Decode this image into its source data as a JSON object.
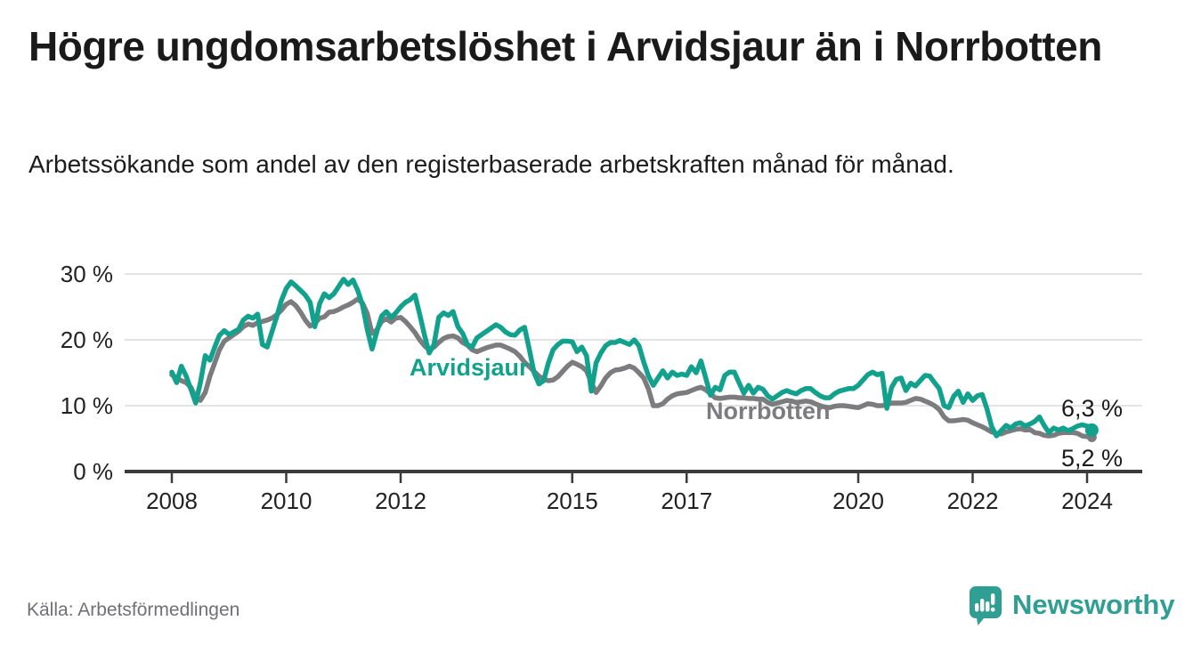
{
  "header": {
    "title": "Högre ungdomsarbetslöshet i Arvidsjaur än i Norrbotten",
    "subtitle": "Arbetssökande som andel av den registerbaserade arbetskraften månad för månad."
  },
  "chart_data": {
    "type": "line",
    "unit": "%",
    "x_start": "2008-01",
    "x_end": "2024-02",
    "x_interval": "monthly",
    "ylim": [
      0,
      30
    ],
    "grid": "horizontal",
    "grid_color": "#dadada",
    "axis_color": "#3b3b3b",
    "ytick_values": [
      0,
      10,
      20,
      30
    ],
    "ytick_labels": [
      "0 %",
      "10 %",
      "20 %",
      "30 %"
    ],
    "xticks": [
      2008,
      2010,
      2012,
      2015,
      2017,
      2020,
      2022,
      2024
    ],
    "series": [
      {
        "name": "Arvidsjaur",
        "color": "#12a18d",
        "end_label": "6,3 %",
        "end_value": 6.3,
        "values": [
          15.1,
          13.5,
          16.0,
          14.5,
          12.5,
          10.4,
          13.5,
          17.6,
          16.9,
          18.9,
          20.7,
          21.4,
          20.8,
          21.2,
          21.6,
          23.0,
          23.6,
          23.3,
          23.9,
          19.3,
          18.9,
          21.2,
          23.5,
          26.0,
          27.8,
          28.8,
          28.2,
          27.5,
          26.8,
          25.7,
          22.0,
          25.5,
          27.0,
          26.4,
          27.0,
          28.1,
          29.2,
          28.4,
          29.1,
          27.5,
          25.3,
          21.6,
          18.6,
          21.2,
          23.6,
          24.3,
          23.4,
          24.1,
          25.0,
          25.7,
          26.1,
          26.8,
          23.9,
          20.7,
          18.0,
          19.3,
          23.4,
          24.1,
          23.7,
          24.3,
          22.0,
          21.0,
          19.3,
          18.9,
          20.3,
          20.8,
          21.3,
          21.8,
          22.3,
          21.9,
          21.2,
          20.8,
          20.7,
          21.5,
          21.9,
          18.5,
          15.0,
          13.3,
          13.8,
          16.5,
          18.5,
          19.3,
          19.8,
          19.8,
          19.7,
          18.2,
          18.9,
          17.6,
          12.2,
          16.5,
          18.0,
          19.1,
          19.6,
          19.6,
          19.9,
          19.6,
          19.3,
          20.0,
          19.1,
          16.6,
          14.5,
          13.1,
          14.2,
          15.3,
          14.2,
          15.1,
          14.6,
          14.8,
          14.6,
          15.9,
          15.0,
          16.8,
          14.2,
          11.6,
          12.8,
          12.4,
          14.6,
          15.1,
          15.1,
          13.5,
          11.9,
          13.1,
          11.9,
          12.8,
          12.5,
          11.5,
          11.0,
          11.5,
          12.0,
          12.3,
          12.0,
          11.8,
          12.3,
          12.6,
          12.6,
          12.0,
          11.5,
          11.2,
          11.2,
          11.8,
          12.2,
          12.4,
          12.6,
          12.6,
          13.1,
          13.9,
          14.7,
          15.1,
          14.7,
          14.9,
          9.6,
          12.8,
          14.0,
          14.2,
          12.3,
          13.4,
          13.0,
          13.8,
          14.6,
          14.5,
          13.5,
          12.6,
          10.0,
          9.7,
          11.4,
          12.2,
          10.5,
          11.8,
          10.8,
          11.5,
          11.7,
          9.5,
          6.8,
          5.4,
          6.2,
          7.0,
          6.6,
          7.2,
          7.4,
          6.9,
          7.2,
          7.6,
          8.3,
          7.0,
          5.9,
          6.6,
          6.3,
          6.6,
          6.2,
          6.5,
          6.9,
          7.1,
          6.9,
          6.3
        ]
      },
      {
        "name": "Norrbotten",
        "color": "#7c7c7e",
        "end_label": "5,2 %",
        "end_value": 5.2,
        "values": [
          14.7,
          14.2,
          13.8,
          13.5,
          12.8,
          11.2,
          10.8,
          12.0,
          14.5,
          16.5,
          18.5,
          19.8,
          20.3,
          20.8,
          21.3,
          22.0,
          22.4,
          22.2,
          22.6,
          22.8,
          23.0,
          23.3,
          23.8,
          24.5,
          25.4,
          25.8,
          25.2,
          24.2,
          23.0,
          22.1,
          22.5,
          23.3,
          23.5,
          24.2,
          24.3,
          24.6,
          25.0,
          25.3,
          25.7,
          26.2,
          25.6,
          24.0,
          21.0,
          21.5,
          22.8,
          23.2,
          22.7,
          23.3,
          23.4,
          22.8,
          22.0,
          21.1,
          20.0,
          19.1,
          18.5,
          18.9,
          19.6,
          20.2,
          20.5,
          20.6,
          20.3,
          19.6,
          19.2,
          18.5,
          18.2,
          18.5,
          18.8,
          19.0,
          19.2,
          19.2,
          18.9,
          18.6,
          18.2,
          17.5,
          16.6,
          15.9,
          15.2,
          14.5,
          14.0,
          13.8,
          13.9,
          14.4,
          15.2,
          16.0,
          16.6,
          16.3,
          15.9,
          15.3,
          13.5,
          12.0,
          13.0,
          14.2,
          15.0,
          15.4,
          15.5,
          15.7,
          16.0,
          15.7,
          15.0,
          14.2,
          12.5,
          10.0,
          10.0,
          10.3,
          11.0,
          11.5,
          11.8,
          11.9,
          12.0,
          12.3,
          12.6,
          12.8,
          12.4,
          11.8,
          11.2,
          11.1,
          11.2,
          11.3,
          11.3,
          11.2,
          11.2,
          11.1,
          11.1,
          11.0,
          11.0,
          10.5,
          10.2,
          10.4,
          10.6,
          10.8,
          10.7,
          10.5,
          10.6,
          10.7,
          10.6,
          10.3,
          10.0,
          9.8,
          9.7,
          9.9,
          10.0,
          10.0,
          9.9,
          9.8,
          9.7,
          10.0,
          10.3,
          10.2,
          10.0,
          10.0,
          10.2,
          10.4,
          10.4,
          10.4,
          10.5,
          10.8,
          11.1,
          11.0,
          10.7,
          10.4,
          10.0,
          9.4,
          8.3,
          7.7,
          7.7,
          7.8,
          7.9,
          7.8,
          7.4,
          7.1,
          6.8,
          6.4,
          6.0,
          5.8,
          5.7,
          6.0,
          6.2,
          6.4,
          6.5,
          6.3,
          6.4,
          5.9,
          5.8,
          5.5,
          5.4,
          5.5,
          5.8,
          5.9,
          5.9,
          5.9,
          5.8,
          5.4,
          5.3,
          5.2
        ]
      }
    ]
  },
  "footer": {
    "source": "Källa: Arbetsförmedlingen",
    "brand": "Newsworthy"
  },
  "icons": {
    "logo_bubble": "speech-bubble-with-bar-chart-and-exclamation"
  }
}
